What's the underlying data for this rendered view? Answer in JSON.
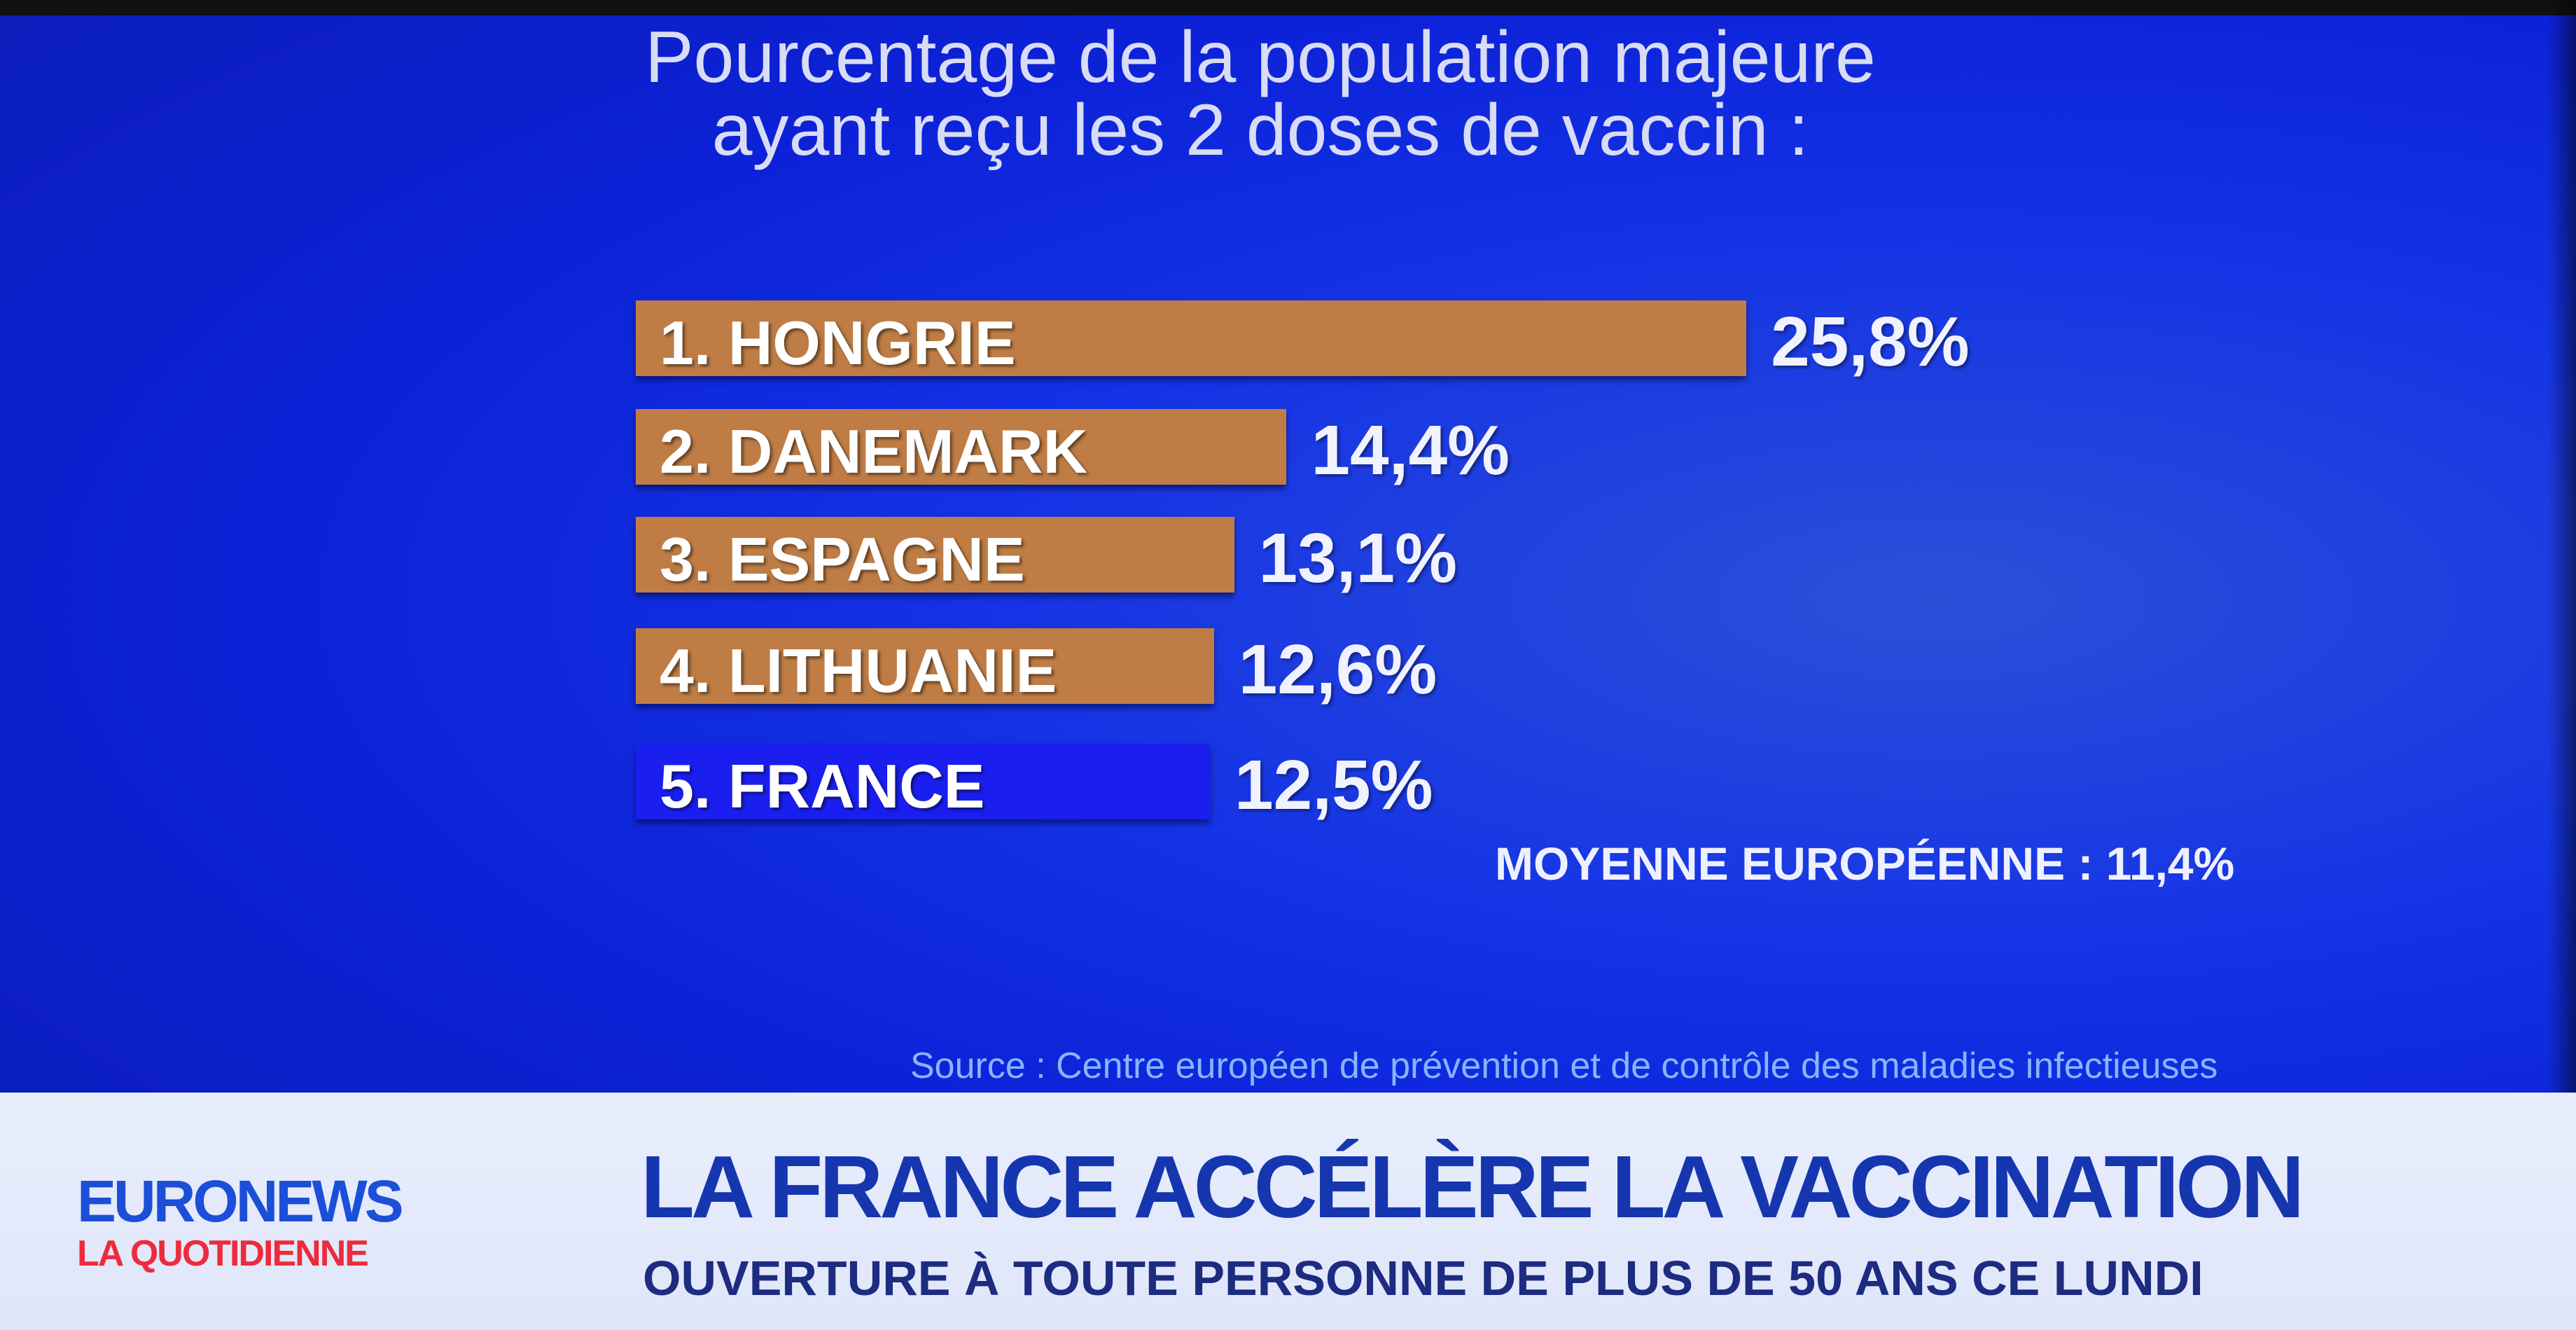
{
  "chart_data": {
    "type": "bar",
    "orientation": "horizontal",
    "title": "Pourcentage de la population majeure ayant reçu les 2 doses de vaccin :",
    "title_lines": [
      "Pourcentage de la population majeure",
      "ayant reçu les 2 doses de vaccin :"
    ],
    "categories": [
      "1. HONGRIE",
      "2. DANEMARK",
      "3. ESPAGNE",
      "4. LITHUANIE",
      "5. FRANCE"
    ],
    "values": [
      25.8,
      14.4,
      13.1,
      12.6,
      12.5
    ],
    "value_labels": [
      "25,8%",
      "14,4%",
      "13,1%",
      "12,6%",
      "12,5%"
    ],
    "highlight": "5. FRANCE",
    "colors": {
      "bar": "#bf7d45",
      "highlight": "#1a1ff0"
    },
    "annotation": "MOYENNE EUROPÉENNE : 11,4%",
    "source": "Source : Centre européen de prévention et de contrôle des maladies infectieuses",
    "grid": false
  },
  "banner": {
    "logo_top": "EURONEWS",
    "logo_bottom": "LA QUOTIDIENNE",
    "headline": "LA FRANCE ACCÉLÈRE LA VACCINATION",
    "subheadline": "OUVERTURE À TOUTE PERSONNE DE PLUS DE 50 ANS CE LUNDI"
  }
}
